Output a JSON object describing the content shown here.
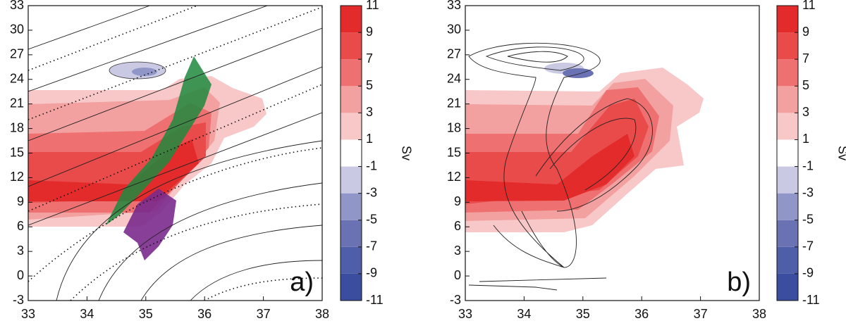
{
  "chart_data": [
    {
      "type": "contour",
      "annotation": "a)",
      "xlim": [
        33,
        38
      ],
      "xticks": [
        33,
        34,
        35,
        36,
        37,
        38
      ],
      "ylim": [
        -3,
        33
      ],
      "yticks": [
        -3,
        0,
        3,
        6,
        9,
        12,
        15,
        18,
        21,
        24,
        27,
        30,
        33
      ],
      "colorbar": {
        "label": "Sv",
        "lim": [
          -11,
          11
        ],
        "ticks": [
          -11,
          -9,
          -7,
          -5,
          -3,
          -1,
          1,
          3,
          5,
          7,
          9,
          11
        ],
        "colors": [
          "#3b4d9e",
          "#4e5ea8",
          "#6b72b3",
          "#9196c8",
          "#c9c9e3",
          "#ffffff",
          "#f8c8c8",
          "#f3a0a0",
          "#ee7070",
          "#e94a4a",
          "#e42b2b"
        ]
      }
    },
    {
      "type": "contour",
      "annotation": "b)",
      "xlim": [
        33,
        38
      ],
      "xticks": [
        33,
        34,
        35,
        36,
        37,
        38
      ],
      "ylim": [
        -3,
        33
      ],
      "yticks": [
        -3,
        0,
        3,
        6,
        9,
        12,
        15,
        18,
        21,
        24,
        27,
        30,
        33
      ],
      "colorbar": {
        "label": "Sv",
        "lim": [
          -11,
          11
        ],
        "ticks": [
          -11,
          -9,
          -7,
          -5,
          -3,
          -1,
          1,
          3,
          5,
          7,
          9,
          11
        ],
        "colors": [
          "#3b4d9e",
          "#4e5ea8",
          "#6b72b3",
          "#9196c8",
          "#c9c9e3",
          "#ffffff",
          "#f8c8c8",
          "#f3a0a0",
          "#ee7070",
          "#e94a4a",
          "#e42b2b"
        ]
      }
    }
  ]
}
